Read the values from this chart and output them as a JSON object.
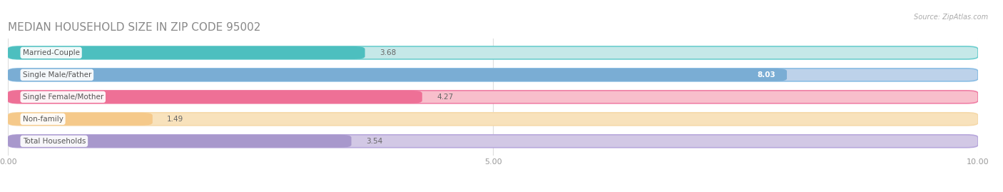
{
  "title": "MEDIAN HOUSEHOLD SIZE IN ZIP CODE 95002",
  "source": "Source: ZipAtlas.com",
  "categories": [
    "Married-Couple",
    "Single Male/Father",
    "Single Female/Mother",
    "Non-family",
    "Total Households"
  ],
  "values": [
    3.68,
    8.03,
    4.27,
    1.49,
    3.54
  ],
  "bar_colors": [
    "#4DBFBF",
    "#7AADD4",
    "#EE7096",
    "#F5C98A",
    "#A898CC"
  ],
  "bar_bg_colors": [
    "#C5E8E8",
    "#BDD2EA",
    "#F8BFCC",
    "#F8E2BC",
    "#D2C8E5"
  ],
  "xlim": [
    0,
    10
  ],
  "xticks": [
    0.0,
    5.0,
    10.0
  ],
  "xtick_labels": [
    "0.00",
    "5.00",
    "10.00"
  ],
  "value_label_inside": [
    false,
    true,
    false,
    false,
    false
  ],
  "title_fontsize": 11,
  "bar_height": 0.58,
  "background_color": "#ffffff",
  "bar_border_colors": [
    "#6CCECE",
    "#8ABDE4",
    "#F080A6",
    "#F5D9AA",
    "#B8A8DC"
  ]
}
